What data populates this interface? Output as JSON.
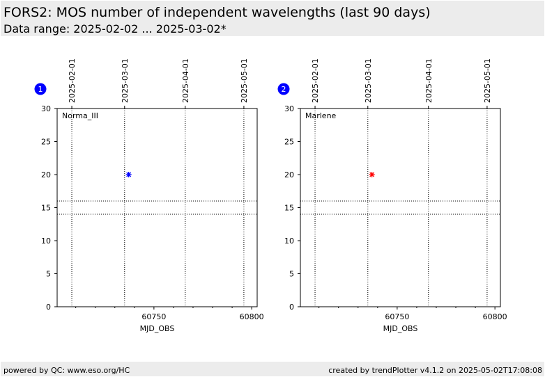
{
  "header": {
    "title": "FORS2: MOS number of independent wavelengths (last 90 days)",
    "subtitle": "Data range: 2025-02-02 ... 2025-03-02*"
  },
  "footer": {
    "left": "powered by QC: www.eso.org/HC",
    "right": "created by trendPlotter v4.1.2 on 2025-05-02T17:08:08"
  },
  "colors": {
    "background_band": "#ececec",
    "badge": "#0000ff"
  },
  "chart_data": [
    {
      "type": "scatter",
      "badge": "1",
      "label": "Norma_III",
      "marker_color": "#0000ff",
      "xlabel": "MJD_OBS",
      "ylabel": "",
      "xlim": [
        60700.5,
        60802.8
      ],
      "ylim": [
        0,
        30
      ],
      "xticks": [
        60750,
        60800
      ],
      "yticks": [
        0,
        5,
        10,
        15,
        20,
        25,
        30
      ],
      "date_ticks": [
        {
          "mjd": 60708,
          "label": "2025-02-01"
        },
        {
          "mjd": 60735,
          "label": "2025-03-01"
        },
        {
          "mjd": 60766,
          "label": "2025-04-01"
        },
        {
          "mjd": 60796,
          "label": "2025-05-01"
        }
      ],
      "hlines": [
        14,
        16
      ],
      "points": [
        {
          "x": 60737.1,
          "y": 20
        }
      ]
    },
    {
      "type": "scatter",
      "badge": "2",
      "label": "Marlene",
      "marker_color": "#ff0000",
      "xlabel": "MJD_OBS",
      "ylabel": "",
      "xlim": [
        60700.5,
        60802.8
      ],
      "ylim": [
        0,
        30
      ],
      "xticks": [
        60750,
        60800
      ],
      "yticks": [
        0,
        5,
        10,
        15,
        20,
        25,
        30
      ],
      "date_ticks": [
        {
          "mjd": 60708,
          "label": "2025-02-01"
        },
        {
          "mjd": 60735,
          "label": "2025-03-01"
        },
        {
          "mjd": 60766,
          "label": "2025-04-01"
        },
        {
          "mjd": 60796,
          "label": "2025-05-01"
        }
      ],
      "hlines": [
        14,
        16
      ],
      "points": [
        {
          "x": 60737.1,
          "y": 20
        }
      ]
    }
  ]
}
